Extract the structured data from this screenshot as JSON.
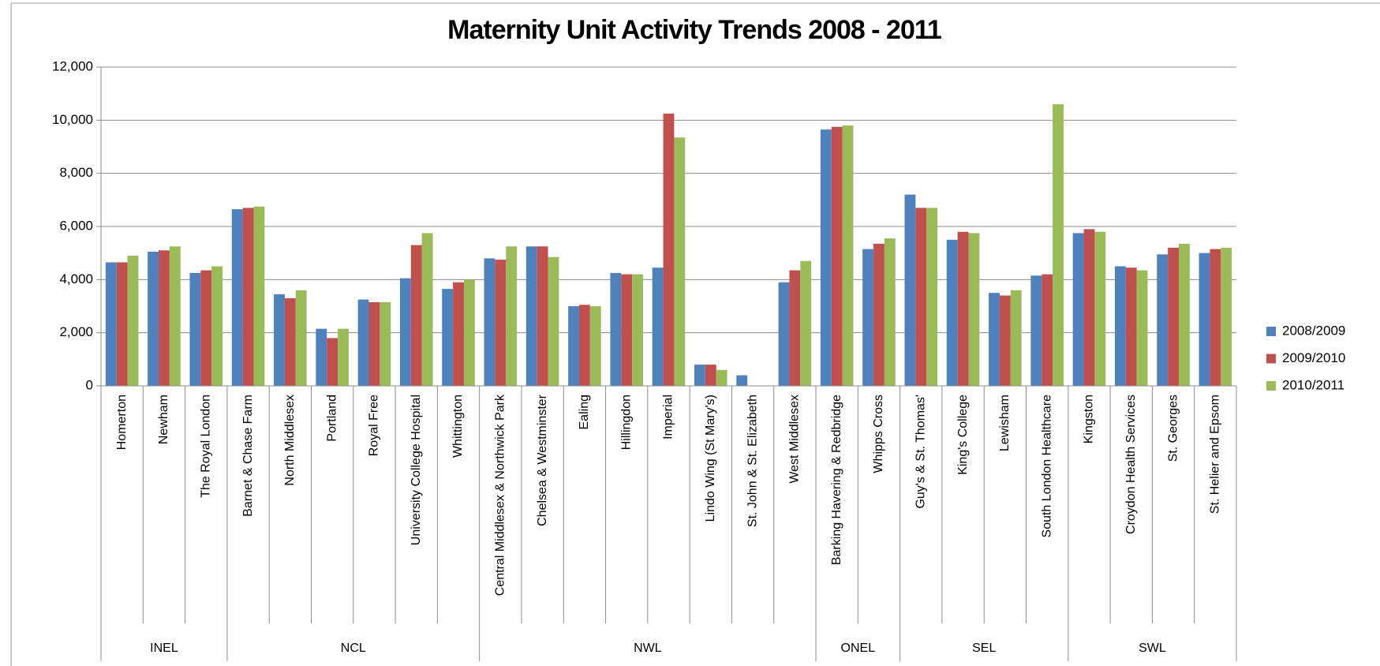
{
  "chart_data": {
    "type": "bar",
    "title": "Maternity Unit Activity Trends 2008 - 2011",
    "groups": [
      {
        "name": "INEL",
        "categories": [
          "Homerton",
          "Newham",
          "The Royal London"
        ]
      },
      {
        "name": "NCL",
        "categories": [
          "Barnet & Chase Farm",
          "North Middlesex",
          "Portland",
          "Royal Free",
          "University College Hospital",
          "Whittington"
        ]
      },
      {
        "name": "NWL",
        "categories": [
          "Central Middlesex & Northwick Park",
          "Chelsea & Westminster",
          "Ealing",
          "Hillingdon",
          "Imperial",
          "Lindo Wing (St Mary's)",
          "St. John & St. Elizabeth",
          "West Middlesex"
        ]
      },
      {
        "name": "ONEL",
        "categories": [
          "Barking Havering & Redbridge",
          "Whipps Cross"
        ]
      },
      {
        "name": "SEL",
        "categories": [
          "Guy's & St. Thomas'",
          "King's College",
          "Lewisham",
          "South London Healthcare"
        ]
      },
      {
        "name": "SWL",
        "categories": [
          "Kingston",
          "Croydon Health Services",
          "St. Georges",
          "St. Helier and Epsom"
        ]
      }
    ],
    "series": [
      {
        "name": "2008/2009",
        "color": "#4f81bd",
        "values": [
          4650,
          5050,
          4250,
          6650,
          3450,
          2150,
          3250,
          4050,
          3650,
          4800,
          5250,
          3000,
          4250,
          4450,
          800,
          400,
          3900,
          9650,
          5150,
          7200,
          5500,
          3500,
          4150,
          5750,
          4500,
          4950,
          5000
        ]
      },
      {
        "name": "2009/2010",
        "color": "#c0504d",
        "values": [
          4650,
          5100,
          4350,
          6700,
          3300,
          1800,
          3150,
          5300,
          3900,
          4750,
          5250,
          3050,
          4200,
          10250,
          800,
          null,
          4350,
          9750,
          5350,
          6700,
          5800,
          3400,
          4200,
          5900,
          4450,
          5200,
          5150
        ]
      },
      {
        "name": "2010/2011",
        "color": "#9bbb59",
        "values": [
          4900,
          5250,
          4500,
          6750,
          3600,
          2150,
          3150,
          5750,
          4000,
          5250,
          4850,
          3000,
          4200,
          9350,
          600,
          null,
          4700,
          9800,
          5550,
          6700,
          5750,
          3600,
          10600,
          5800,
          4350,
          5350,
          5200
        ]
      }
    ],
    "ylim": [
      0,
      12000
    ],
    "yticks": [
      0,
      {
        "value": 2000,
        "label": "2,000"
      },
      {
        "value": 4000,
        "label": "4,000"
      },
      {
        "value": 6000,
        "label": "6,000"
      },
      {
        "value": 8000,
        "label": "8,000"
      },
      {
        "value": 10000,
        "label": "10,000"
      },
      {
        "value": 12000,
        "label": "12,000"
      }
    ],
    "grid": true,
    "legend": "right"
  }
}
